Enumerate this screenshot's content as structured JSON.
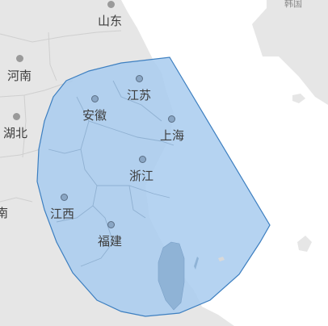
{
  "map": {
    "colors": {
      "land": "#e6e6e6",
      "sea": "#ffffff",
      "border": "#c8c8c8",
      "region_fill": "#a8cbee",
      "region_stroke": "#3d7fc0"
    },
    "reference_places": [
      {
        "id": "shandong",
        "name": "山东"
      },
      {
        "id": "henan",
        "name": "河南"
      },
      {
        "id": "hubei",
        "name": "湖北"
      },
      {
        "id": "hunan",
        "name": "南"
      },
      {
        "id": "korea",
        "name": "韩国"
      }
    ],
    "highlighted_places": [
      {
        "id": "jiangsu",
        "name": "江苏"
      },
      {
        "id": "anhui",
        "name": "安徽"
      },
      {
        "id": "shanghai",
        "name": "上海"
      },
      {
        "id": "zhejiang",
        "name": "浙江"
      },
      {
        "id": "jiangxi",
        "name": "江西"
      },
      {
        "id": "fujian",
        "name": "福建"
      }
    ]
  }
}
